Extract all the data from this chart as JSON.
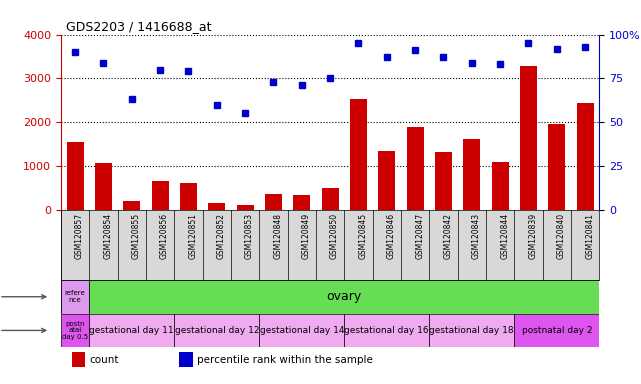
{
  "title": "GDS2203 / 1416688_at",
  "samples": [
    "GSM120857",
    "GSM120854",
    "GSM120855",
    "GSM120856",
    "GSM120851",
    "GSM120852",
    "GSM120853",
    "GSM120848",
    "GSM120849",
    "GSM120850",
    "GSM120845",
    "GSM120846",
    "GSM120847",
    "GSM120842",
    "GSM120843",
    "GSM120844",
    "GSM120839",
    "GSM120840",
    "GSM120841"
  ],
  "counts": [
    1550,
    1080,
    200,
    650,
    620,
    150,
    110,
    370,
    330,
    490,
    2530,
    1340,
    1880,
    1330,
    1620,
    1090,
    3290,
    1960,
    2440
  ],
  "percentiles": [
    90,
    84,
    63,
    80,
    79,
    60,
    55,
    73,
    71,
    75,
    95,
    87,
    91,
    87,
    84,
    83,
    95,
    92,
    93
  ],
  "ylim_left": [
    0,
    4000
  ],
  "ylim_right": [
    0,
    100
  ],
  "yticks_left": [
    0,
    1000,
    2000,
    3000,
    4000
  ],
  "yticks_right": [
    0,
    25,
    50,
    75,
    100
  ],
  "bar_color": "#cc0000",
  "dot_color": "#0000cc",
  "bg_color": "#ffffff",
  "xticklabel_bg": "#d8d8d8",
  "tissue_row": {
    "first_label": "refere\nnce",
    "first_color": "#dd99ee",
    "second_label": "ovary",
    "second_color": "#66dd55"
  },
  "age_row": {
    "segments": [
      {
        "label": "postn\natal\nday 0.5",
        "color": "#dd55ee",
        "count": 1
      },
      {
        "label": "gestational day 11",
        "color": "#f0aaf0",
        "count": 3
      },
      {
        "label": "gestational day 12",
        "color": "#f0aaf0",
        "count": 3
      },
      {
        "label": "gestational day 14",
        "color": "#f0aaf0",
        "count": 3
      },
      {
        "label": "gestational day 16",
        "color": "#f0aaf0",
        "count": 3
      },
      {
        "label": "gestational day 18",
        "color": "#f0aaf0",
        "count": 3
      },
      {
        "label": "postnatal day 2",
        "color": "#dd55ee",
        "count": 3
      }
    ]
  },
  "legend": [
    {
      "label": "count",
      "color": "#cc0000"
    },
    {
      "label": "percentile rank within the sample",
      "color": "#0000cc"
    }
  ]
}
